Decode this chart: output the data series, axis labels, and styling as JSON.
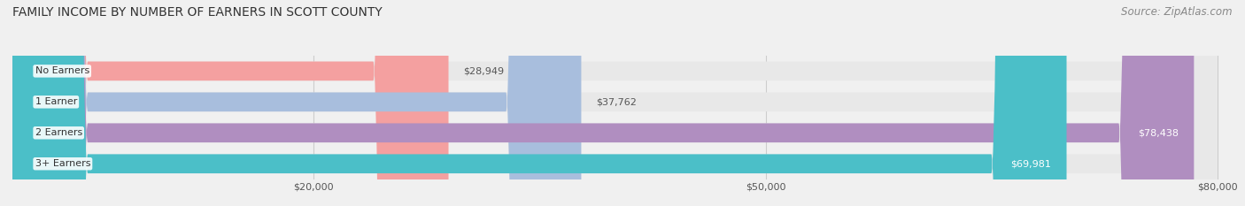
{
  "title": "FAMILY INCOME BY NUMBER OF EARNERS IN SCOTT COUNTY",
  "source": "Source: ZipAtlas.com",
  "categories": [
    "No Earners",
    "1 Earner",
    "2 Earners",
    "3+ Earners"
  ],
  "values": [
    28949,
    37762,
    78438,
    69981
  ],
  "bar_colors": [
    "#f4a0a0",
    "#a8bedd",
    "#b08ec0",
    "#4bbfc8"
  ],
  "label_colors": [
    "#555555",
    "#555555",
    "#ffffff",
    "#ffffff"
  ],
  "x_min": 0,
  "x_max": 80000,
  "x_ticks": [
    20000,
    50000,
    80000
  ],
  "x_tick_labels": [
    "$20,000",
    "$50,000",
    "$80,000"
  ],
  "background_color": "#f0f0f0",
  "bar_background_color": "#e8e8e8",
  "title_fontsize": 10,
  "source_fontsize": 8.5
}
